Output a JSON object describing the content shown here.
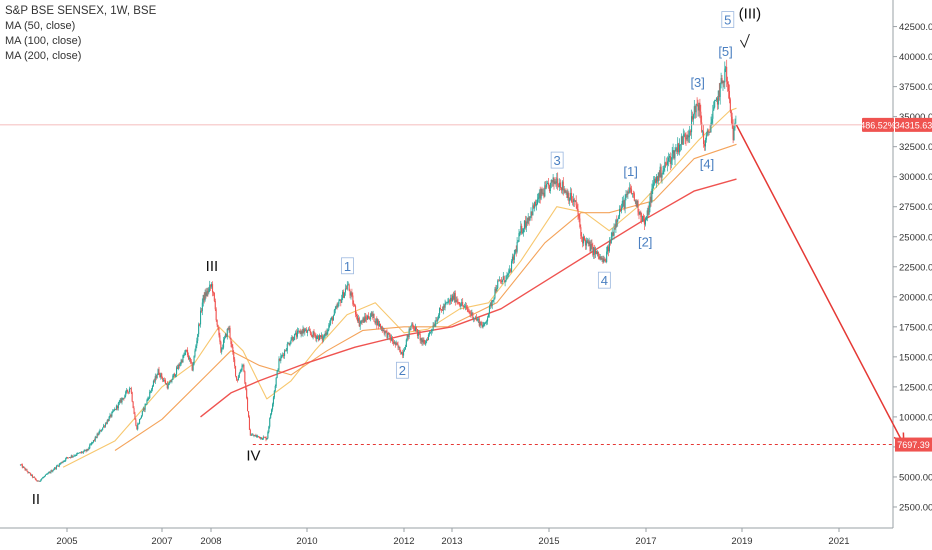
{
  "legend": {
    "title": "S&P BSE SENSEX, 1W, BSE",
    "studies": [
      "MA (50, close)",
      "MA (100, close)",
      "MA (200, close)"
    ]
  },
  "colors": {
    "candle_up": "#26a69a",
    "candle_down": "#ef5350",
    "ma50": "#f7c76e",
    "ma100": "#f4a35a",
    "ma200": "#ef5350",
    "annotation_wave": "#4a7fc1",
    "projection": "#e53935",
    "axis_text": "#333333",
    "price_label_bg": "#ef5350"
  },
  "chart_data": {
    "type": "candlestick",
    "x_axis": {
      "type": "date",
      "range": [
        "2003-06-01",
        "2022-06-01"
      ],
      "tick_labels": [
        "2005",
        "2007",
        "2008",
        "2010",
        "2012",
        "2013",
        "2015",
        "2017",
        "2019",
        "2021"
      ]
    },
    "y_axis": {
      "range": [
        0,
        45000
      ],
      "position": "right",
      "tick_labels": [
        "2500.00",
        "5000.00",
        "7500.00",
        "10000.00",
        "12500.00",
        "15000.00",
        "17500.00",
        "20000.00",
        "22500.00",
        "25000.00",
        "27500.00",
        "30000.00",
        "32500.00",
        "35000.00",
        "37500.00",
        "40000.00",
        "42500.00"
      ]
    },
    "price_path": [
      [
        "2004-01-01",
        6000
      ],
      [
        "2004-05-15",
        4600
      ],
      [
        "2004-09-01",
        5500
      ],
      [
        "2005-01-01",
        6600
      ],
      [
        "2005-06-01",
        7200
      ],
      [
        "2006-05-01",
        12500
      ],
      [
        "2006-06-15",
        9000
      ],
      [
        "2006-12-01",
        13800
      ],
      [
        "2007-02-15",
        12500
      ],
      [
        "2007-07-01",
        15500
      ],
      [
        "2007-08-15",
        14000
      ],
      [
        "2007-11-01",
        19800
      ],
      [
        "2008-01-08",
        21000
      ],
      [
        "2008-03-15",
        15500
      ],
      [
        "2008-05-15",
        17500
      ],
      [
        "2008-07-15",
        13000
      ],
      [
        "2008-09-01",
        14500
      ],
      [
        "2008-10-25",
        8500
      ],
      [
        "2009-03-01",
        8200
      ],
      [
        "2009-06-01",
        14600
      ],
      [
        "2009-09-01",
        16500
      ],
      [
        "2009-12-01",
        17200
      ],
      [
        "2010-05-01",
        16500
      ],
      [
        "2010-11-05",
        21000
      ],
      [
        "2011-02-01",
        17800
      ],
      [
        "2011-05-01",
        18500
      ],
      [
        "2011-12-20",
        15300
      ],
      [
        "2012-03-01",
        17800
      ],
      [
        "2012-06-01",
        16000
      ],
      [
        "2012-10-01",
        18800
      ],
      [
        "2013-01-15",
        20000
      ],
      [
        "2013-08-28",
        17500
      ],
      [
        "2013-12-01",
        21000
      ],
      [
        "2014-03-01",
        21800
      ],
      [
        "2014-06-01",
        25500
      ],
      [
        "2014-11-01",
        28500
      ],
      [
        "2015-03-04",
        29800
      ],
      [
        "2015-08-01",
        27500
      ],
      [
        "2015-09-01",
        25000
      ],
      [
        "2016-02-25",
        22800
      ],
      [
        "2016-06-01",
        26800
      ],
      [
        "2016-09-08",
        28900
      ],
      [
        "2016-12-26",
        26000
      ],
      [
        "2017-03-01",
        29500
      ],
      [
        "2017-08-01",
        32000
      ],
      [
        "2017-12-01",
        34000
      ],
      [
        "2018-01-29",
        36300
      ],
      [
        "2018-03-23",
        32500
      ],
      [
        "2018-06-01",
        35500
      ],
      [
        "2018-08-29",
        38900
      ],
      [
        "2018-10-26",
        33500
      ],
      [
        "2018-11-20",
        34300
      ]
    ],
    "series": [
      {
        "name": "MA (50, close)",
        "points": [
          [
            "2004-12-01",
            5800
          ],
          [
            "2006-01-01",
            8000
          ],
          [
            "2007-01-01",
            12500
          ],
          [
            "2007-09-01",
            14500
          ],
          [
            "2008-03-01",
            17500
          ],
          [
            "2008-09-01",
            15500
          ],
          [
            "2009-03-01",
            11500
          ],
          [
            "2009-09-01",
            13000
          ],
          [
            "2010-03-01",
            15500
          ],
          [
            "2010-11-01",
            18500
          ],
          [
            "2011-06-01",
            19500
          ],
          [
            "2012-01-01",
            17000
          ],
          [
            "2012-07-01",
            17300
          ],
          [
            "2013-03-01",
            19000
          ],
          [
            "2013-10-01",
            19500
          ],
          [
            "2014-06-01",
            23000
          ],
          [
            "2015-03-01",
            27500
          ],
          [
            "2015-10-01",
            27000
          ],
          [
            "2016-04-01",
            25500
          ],
          [
            "2016-11-01",
            27500
          ],
          [
            "2017-06-01",
            30000
          ],
          [
            "2018-02-01",
            33000
          ],
          [
            "2018-10-01",
            35500
          ],
          [
            "2018-11-20",
            35700
          ]
        ]
      },
      {
        "name": "MA (100, close)",
        "points": [
          [
            "2006-01-01",
            7200
          ],
          [
            "2007-01-01",
            9800
          ],
          [
            "2007-12-01",
            13500
          ],
          [
            "2008-06-01",
            15500
          ],
          [
            "2009-01-01",
            14300
          ],
          [
            "2009-09-01",
            13500
          ],
          [
            "2010-06-01",
            15500
          ],
          [
            "2011-03-01",
            17200
          ],
          [
            "2012-01-01",
            17500
          ],
          [
            "2012-12-01",
            17500
          ],
          [
            "2013-12-01",
            19500
          ],
          [
            "2014-12-01",
            24500
          ],
          [
            "2015-09-01",
            27000
          ],
          [
            "2016-04-01",
            27000
          ],
          [
            "2017-03-01",
            28000
          ],
          [
            "2018-01-01",
            31500
          ],
          [
            "2018-11-20",
            32700
          ]
        ]
      },
      {
        "name": "MA (200, close)",
        "points": [
          [
            "2007-10-15",
            10000
          ],
          [
            "2008-06-01",
            12000
          ],
          [
            "2009-01-01",
            13000
          ],
          [
            "2010-01-01",
            14500
          ],
          [
            "2011-01-01",
            15800
          ],
          [
            "2012-01-01",
            16800
          ],
          [
            "2013-01-01",
            17500
          ],
          [
            "2014-01-01",
            19000
          ],
          [
            "2015-01-01",
            21500
          ],
          [
            "2016-01-01",
            24000
          ],
          [
            "2017-01-01",
            26500
          ],
          [
            "2018-01-01",
            28800
          ],
          [
            "2018-11-20",
            29800
          ]
        ]
      }
    ],
    "wave_labels": [
      {
        "text": "II",
        "x": "2004-05-01",
        "y": 4600,
        "style": "primary",
        "pos": "below"
      },
      {
        "text": "III",
        "x": "2008-01-08",
        "y": 21000,
        "style": "primary",
        "pos": "above"
      },
      {
        "text": "IV",
        "x": "2008-11-20",
        "y": 8200,
        "style": "primary",
        "pos": "below"
      },
      {
        "text": "1",
        "x": "2010-11-05",
        "y": 21000,
        "style": "boxed",
        "pos": "above"
      },
      {
        "text": "2",
        "x": "2011-12-20",
        "y": 15300,
        "style": "boxed",
        "pos": "below"
      },
      {
        "text": "3",
        "x": "2015-03-04",
        "y": 29800,
        "style": "boxed",
        "pos": "above"
      },
      {
        "text": "4",
        "x": "2016-02-25",
        "y": 22800,
        "style": "boxed",
        "pos": "below"
      },
      {
        "text": "[1]",
        "x": "2016-09-08",
        "y": 28900,
        "style": "plain",
        "pos": "above"
      },
      {
        "text": "[2]",
        "x": "2016-12-26",
        "y": 26000,
        "style": "plain",
        "pos": "below"
      },
      {
        "text": "[3]",
        "x": "2018-01-29",
        "y": 36300,
        "style": "plain",
        "pos": "above"
      },
      {
        "text": "[4]",
        "x": "2018-04-10",
        "y": 32500,
        "style": "plain",
        "pos": "below"
      },
      {
        "text": "[5]",
        "x": "2018-08-29",
        "y": 38900,
        "style": "plain",
        "pos": "above"
      },
      {
        "text": "5",
        "x": "2018-09-15",
        "y": 41500,
        "style": "boxed",
        "pos": "above"
      },
      {
        "text": "(III)",
        "x": "2019-03-01",
        "y": 42000,
        "style": "primary",
        "pos": "above"
      }
    ],
    "current_price": {
      "value": 34315.63,
      "label": "34315.63",
      "change_label": "486.52%"
    },
    "support_line": {
      "value": 7697.39,
      "label": "7697.39",
      "from": "2008-11-15"
    },
    "projection_arrow": {
      "from": [
        "2018-11-20",
        34300
      ],
      "to": [
        "2022-05-01",
        7700
      ]
    }
  }
}
